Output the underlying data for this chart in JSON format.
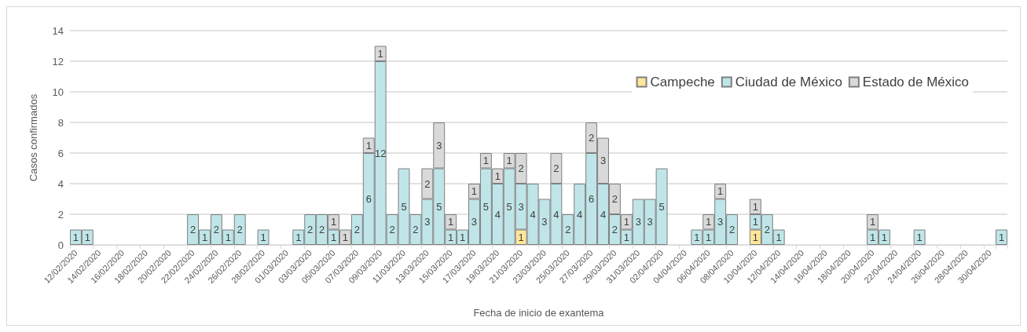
{
  "chart_data": {
    "type": "bar",
    "stacked": true,
    "xlabel": "Fecha de inicio de exantema",
    "ylabel": "Casos confirmados",
    "categories": [
      "12/02/2020",
      null,
      "14/02/2020",
      null,
      "16/02/2020",
      null,
      "18/02/2020",
      null,
      "20/02/2020",
      null,
      "22/02/2020",
      null,
      "24/02/2020",
      null,
      "26/02/2020",
      null,
      "28/02/2020",
      null,
      "01/03/2020",
      null,
      "03/03/2020",
      null,
      "05/03/2020",
      null,
      "07/03/2020",
      null,
      "09/03/2020",
      null,
      "11/03/2020",
      null,
      "13/03/2020",
      null,
      "15/03/2020",
      null,
      "17/03/2020",
      null,
      "19/03/2020",
      null,
      "21/03/2020",
      null,
      "23/03/2020",
      null,
      "25/03/2020",
      null,
      "27/03/2020",
      null,
      "29/03/2020",
      null,
      "31/03/2020",
      null,
      "02/04/2020",
      null,
      "04/04/2020",
      null,
      "06/04/2020",
      null,
      "08/04/2020",
      null,
      "10/04/2020",
      null,
      "12/04/2020",
      null,
      "14/04/2020",
      null,
      "16/04/2020",
      null,
      "18/04/2020",
      null,
      "20/04/2020",
      null,
      "22/04/2020",
      null,
      "24/04/2020",
      null,
      "26/04/2020",
      null,
      "28/04/2020",
      null,
      "30/04/2020",
      null
    ],
    "series": [
      {
        "name": "Campeche",
        "color": "#ffe699",
        "values": [
          null,
          null,
          null,
          null,
          null,
          null,
          null,
          null,
          null,
          null,
          null,
          null,
          null,
          null,
          null,
          null,
          null,
          null,
          null,
          null,
          null,
          null,
          null,
          null,
          null,
          null,
          null,
          null,
          null,
          null,
          null,
          null,
          null,
          null,
          null,
          null,
          null,
          null,
          1,
          null,
          null,
          null,
          null,
          null,
          null,
          null,
          null,
          null,
          null,
          null,
          null,
          null,
          null,
          null,
          null,
          null,
          null,
          null,
          1,
          null,
          null,
          null,
          null,
          null,
          null,
          null,
          null,
          null,
          null,
          null,
          null,
          null,
          null,
          null,
          null,
          null,
          null,
          null,
          null,
          null
        ]
      },
      {
        "name": "Ciudad de México",
        "color": "#bfe5e8",
        "values": [
          1,
          1,
          null,
          null,
          null,
          null,
          null,
          null,
          null,
          null,
          2,
          1,
          2,
          1,
          2,
          null,
          1,
          null,
          null,
          1,
          2,
          2,
          1,
          null,
          2,
          6,
          12,
          2,
          5,
          2,
          3,
          5,
          1,
          1,
          3,
          5,
          4,
          5,
          3,
          4,
          3,
          4,
          2,
          4,
          6,
          4,
          2,
          1,
          3,
          3,
          5,
          null,
          null,
          1,
          1,
          3,
          2,
          null,
          1,
          2,
          1,
          null,
          null,
          null,
          null,
          null,
          null,
          null,
          1,
          1,
          null,
          null,
          1,
          null,
          null,
          null,
          null,
          null,
          null,
          1
        ]
      },
      {
        "name": "Estado de México",
        "color": "#d9d9d9",
        "values": [
          null,
          null,
          null,
          null,
          null,
          null,
          null,
          null,
          null,
          null,
          null,
          null,
          null,
          null,
          null,
          null,
          null,
          null,
          null,
          null,
          null,
          null,
          1,
          1,
          null,
          1,
          1,
          null,
          null,
          null,
          2,
          3,
          1,
          null,
          1,
          1,
          1,
          1,
          2,
          null,
          null,
          2,
          null,
          null,
          2,
          3,
          2,
          1,
          null,
          null,
          null,
          null,
          null,
          null,
          1,
          1,
          null,
          null,
          1,
          null,
          null,
          null,
          null,
          null,
          null,
          null,
          null,
          null,
          1,
          null,
          null,
          null,
          null,
          null,
          null,
          null,
          null,
          null,
          null,
          null
        ]
      }
    ],
    "ylim": [
      0,
      14
    ],
    "yticks": [
      0,
      2,
      4,
      6,
      8,
      10,
      12,
      14
    ],
    "grid": "y",
    "legend": "top right",
    "data_labels": true
  }
}
